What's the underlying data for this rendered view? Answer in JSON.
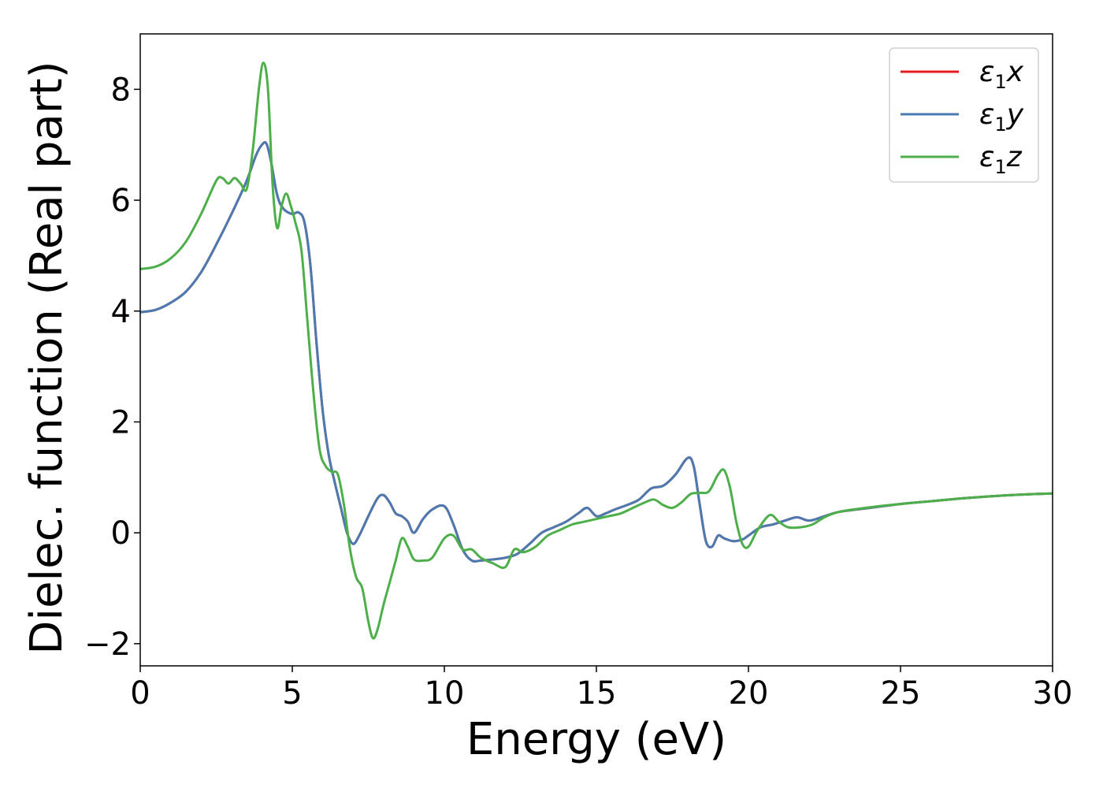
{
  "chart_data": {
    "type": "line",
    "title": "",
    "xlabel": "Energy (eV)",
    "ylabel": "Dielec. function (Real part)",
    "xlim": [
      0,
      30
    ],
    "ylim": [
      -2.4,
      9.0
    ],
    "xticks": [
      0,
      5,
      10,
      15,
      20,
      25,
      30
    ],
    "xtick_labels": [
      "0",
      "5",
      "10",
      "15",
      "20",
      "25",
      "30"
    ],
    "yticks": [
      -2,
      0,
      2,
      4,
      6,
      8
    ],
    "ytick_labels": [
      "−2",
      "0",
      "2",
      "4",
      "6",
      "8"
    ],
    "grid": false,
    "legend_position": "top-right",
    "series": [
      {
        "name": "ε₁x",
        "legend_base": "ε",
        "legend_sub": "1",
        "legend_suffix": "x",
        "color": "#e41a1c",
        "x": [
          0,
          0.5,
          1.0,
          1.5,
          2.0,
          2.5,
          3.0,
          3.5,
          3.8,
          4.0,
          4.15,
          4.3,
          4.5,
          4.7,
          5.0,
          5.2,
          5.4,
          5.6,
          5.8,
          6.0,
          6.2,
          6.4,
          6.6,
          6.8,
          7.0,
          7.2,
          7.5,
          7.8,
          8.0,
          8.2,
          8.4,
          8.6,
          8.8,
          9.0,
          9.3,
          9.6,
          10.0,
          10.3,
          10.6,
          10.9,
          11.2,
          11.6,
          12.0,
          12.4,
          12.8,
          13.2,
          13.6,
          14.0,
          14.4,
          14.7,
          15.0,
          15.3,
          15.6,
          16.0,
          16.4,
          16.8,
          17.2,
          17.6,
          18.0,
          18.2,
          18.4,
          18.6,
          18.8,
          19.0,
          19.2,
          19.5,
          19.8,
          20.0,
          20.4,
          20.8,
          21.2,
          21.6,
          22.0,
          22.5,
          23.0,
          24.0,
          25.0,
          26.0,
          27.0,
          28.0,
          29.0,
          30.0
        ],
        "y": [
          3.98,
          4.02,
          4.15,
          4.35,
          4.7,
          5.2,
          5.75,
          6.35,
          6.8,
          7.0,
          7.02,
          6.7,
          6.1,
          5.85,
          5.75,
          5.78,
          5.6,
          4.8,
          3.4,
          2.2,
          1.4,
          0.9,
          0.45,
          0.0,
          -0.2,
          -0.05,
          0.3,
          0.62,
          0.68,
          0.55,
          0.35,
          0.3,
          0.2,
          0.0,
          0.25,
          0.42,
          0.48,
          0.15,
          -0.3,
          -0.5,
          -0.5,
          -0.48,
          -0.45,
          -0.38,
          -0.2,
          0.0,
          0.1,
          0.2,
          0.35,
          0.45,
          0.3,
          0.35,
          0.42,
          0.5,
          0.6,
          0.8,
          0.85,
          1.05,
          1.35,
          1.2,
          0.5,
          -0.15,
          -0.25,
          -0.05,
          -0.1,
          -0.15,
          -0.12,
          -0.05,
          0.1,
          0.15,
          0.22,
          0.28,
          0.22,
          0.3,
          0.38,
          0.45,
          0.52,
          0.57,
          0.62,
          0.66,
          0.69,
          0.71
        ]
      },
      {
        "name": "ε₁y",
        "legend_base": "ε",
        "legend_sub": "1",
        "legend_suffix": "y",
        "color": "#4a7ab0",
        "x": [
          0,
          0.5,
          1.0,
          1.5,
          2.0,
          2.5,
          3.0,
          3.5,
          3.8,
          4.0,
          4.15,
          4.3,
          4.5,
          4.7,
          5.0,
          5.2,
          5.4,
          5.6,
          5.8,
          6.0,
          6.2,
          6.4,
          6.6,
          6.8,
          7.0,
          7.2,
          7.5,
          7.8,
          8.0,
          8.2,
          8.4,
          8.6,
          8.8,
          9.0,
          9.3,
          9.6,
          10.0,
          10.3,
          10.6,
          10.9,
          11.2,
          11.6,
          12.0,
          12.4,
          12.8,
          13.2,
          13.6,
          14.0,
          14.4,
          14.7,
          15.0,
          15.3,
          15.6,
          16.0,
          16.4,
          16.8,
          17.2,
          17.6,
          18.0,
          18.2,
          18.4,
          18.6,
          18.8,
          19.0,
          19.2,
          19.5,
          19.8,
          20.0,
          20.4,
          20.8,
          21.2,
          21.6,
          22.0,
          22.5,
          23.0,
          24.0,
          25.0,
          26.0,
          27.0,
          28.0,
          29.0,
          30.0
        ],
        "y": [
          3.98,
          4.02,
          4.15,
          4.35,
          4.7,
          5.2,
          5.75,
          6.35,
          6.8,
          7.0,
          7.02,
          6.7,
          6.1,
          5.85,
          5.75,
          5.78,
          5.6,
          4.8,
          3.4,
          2.2,
          1.4,
          0.9,
          0.45,
          0.0,
          -0.2,
          -0.05,
          0.3,
          0.62,
          0.68,
          0.55,
          0.35,
          0.3,
          0.2,
          0.0,
          0.25,
          0.42,
          0.48,
          0.15,
          -0.3,
          -0.5,
          -0.5,
          -0.48,
          -0.45,
          -0.38,
          -0.2,
          0.0,
          0.1,
          0.2,
          0.35,
          0.45,
          0.3,
          0.35,
          0.42,
          0.5,
          0.6,
          0.8,
          0.85,
          1.05,
          1.35,
          1.2,
          0.5,
          -0.15,
          -0.25,
          -0.05,
          -0.1,
          -0.15,
          -0.12,
          -0.05,
          0.1,
          0.15,
          0.22,
          0.28,
          0.22,
          0.3,
          0.38,
          0.45,
          0.52,
          0.57,
          0.62,
          0.66,
          0.69,
          0.71
        ]
      },
      {
        "name": "ε₁z",
        "legend_base": "ε",
        "legend_sub": "1",
        "legend_suffix": "z",
        "color": "#4daf4a",
        "x": [
          0,
          0.5,
          1.0,
          1.5,
          2.0,
          2.5,
          2.7,
          2.9,
          3.1,
          3.3,
          3.5,
          3.7,
          3.9,
          4.05,
          4.2,
          4.35,
          4.5,
          4.65,
          4.8,
          4.95,
          5.1,
          5.3,
          5.5,
          5.7,
          5.9,
          6.1,
          6.3,
          6.5,
          6.7,
          6.9,
          7.1,
          7.3,
          7.5,
          7.65,
          7.8,
          8.0,
          8.2,
          8.4,
          8.6,
          8.8,
          9.0,
          9.3,
          9.6,
          10.0,
          10.3,
          10.6,
          10.9,
          11.2,
          11.6,
          12.0,
          12.3,
          12.6,
          13.0,
          13.4,
          13.8,
          14.2,
          14.6,
          15.0,
          15.4,
          15.8,
          16.2,
          16.6,
          16.9,
          17.2,
          17.5,
          17.8,
          18.1,
          18.4,
          18.7,
          19.0,
          19.2,
          19.4,
          19.6,
          19.8,
          20.0,
          20.3,
          20.7,
          21.0,
          21.3,
          21.7,
          22.1,
          22.5,
          23.0,
          24.0,
          25.0,
          26.0,
          27.0,
          28.0,
          29.0,
          30.0
        ],
        "y": [
          4.76,
          4.8,
          4.95,
          5.25,
          5.75,
          6.35,
          6.4,
          6.3,
          6.4,
          6.3,
          6.2,
          6.9,
          8.0,
          8.48,
          8.0,
          6.3,
          5.5,
          5.9,
          6.12,
          5.9,
          5.6,
          5.1,
          3.8,
          2.5,
          1.5,
          1.2,
          1.1,
          1.05,
          0.5,
          -0.3,
          -0.8,
          -1.0,
          -1.6,
          -1.9,
          -1.75,
          -1.3,
          -0.9,
          -0.5,
          -0.1,
          -0.25,
          -0.48,
          -0.5,
          -0.45,
          -0.1,
          -0.05,
          -0.3,
          -0.3,
          -0.45,
          -0.55,
          -0.62,
          -0.3,
          -0.35,
          -0.25,
          -0.05,
          0.05,
          0.15,
          0.2,
          0.25,
          0.3,
          0.35,
          0.45,
          0.55,
          0.6,
          0.5,
          0.45,
          0.55,
          0.7,
          0.72,
          0.75,
          1.05,
          1.13,
          0.8,
          0.2,
          -0.2,
          -0.25,
          0.05,
          0.32,
          0.2,
          0.1,
          0.1,
          0.15,
          0.28,
          0.38,
          0.46,
          0.52,
          0.57,
          0.62,
          0.66,
          0.69,
          0.71
        ]
      }
    ]
  }
}
